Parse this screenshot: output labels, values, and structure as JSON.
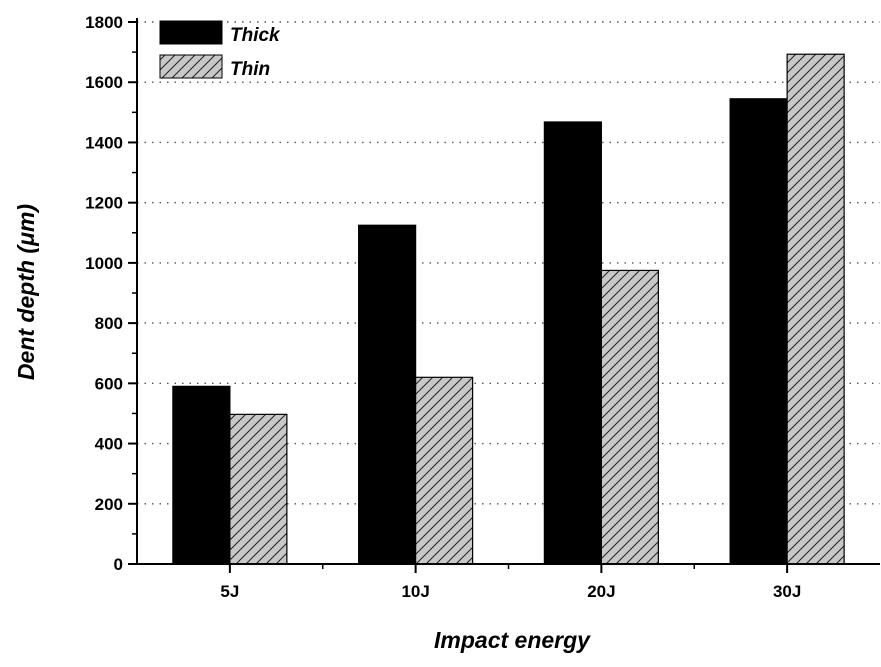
{
  "chart_data": {
    "type": "bar",
    "categories": [
      "5J",
      "10J",
      "20J",
      "30J"
    ],
    "series": [
      {
        "name": "Thick",
        "values": [
          590,
          1125,
          1468,
          1545
        ],
        "color": "#000000",
        "pattern": "solid"
      },
      {
        "name": "Thin",
        "values": [
          497,
          620,
          975,
          1693
        ],
        "color": "#c8c8c8",
        "pattern": "diagonal-hatch"
      }
    ],
    "title": "",
    "xlabel": "Impact energy",
    "ylabel": "Dent depth (μm)",
    "ylim": [
      0,
      1800
    ],
    "yticks": [
      0,
      200,
      400,
      600,
      800,
      1000,
      1200,
      1400,
      1600,
      1800
    ],
    "grid": "horizontal-dotted",
    "legend_position": "top-left"
  }
}
